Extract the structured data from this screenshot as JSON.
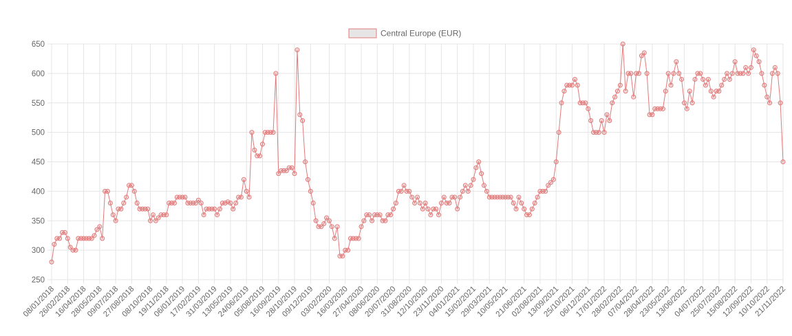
{
  "chart_data": {
    "type": "line",
    "title": "",
    "xlabel": "",
    "ylabel": "",
    "ylim": [
      250,
      650
    ],
    "yticks": [
      250,
      300,
      350,
      400,
      450,
      500,
      550,
      600,
      650
    ],
    "grid": true,
    "legend_position": "top",
    "x_tick_labels": [
      "08/01/2018",
      "26/02/2018",
      "16/04/2018",
      "28/05/2018",
      "09/07/2018",
      "27/08/2018",
      "08/10/2018",
      "19/11/2018",
      "06/01/2019",
      "17/02/2019",
      "31/03/2019",
      "13/05/2019",
      "24/06/2019",
      "05/08/2019",
      "16/09/2019",
      "28/10/2019",
      "09/12/2019",
      "03/02/2020",
      "16/03/2020",
      "27/04/2020",
      "08/06/2020",
      "20/07/2020",
      "31/08/2020",
      "12/10/2020",
      "23/11/2020",
      "04/01/2021",
      "15/02/2021",
      "29/03/2021",
      "10/05/2021",
      "21/06/2021",
      "02/08/2021",
      "13/09/2021",
      "25/10/2021",
      "06/12/2021",
      "17/01/2022",
      "28/02/2022",
      "07/04/2022",
      "28/04/2022",
      "23/05/2022",
      "13/06/2022",
      "04/07/2022",
      "25/07/2022",
      "15/08/2022",
      "12/09/2022",
      "10/10/2022",
      "21/11/2022"
    ],
    "series": [
      {
        "name": "Central Europe (EUR)",
        "color": "#e07a7a",
        "values": [
          280,
          310,
          320,
          320,
          330,
          330,
          320,
          305,
          300,
          300,
          320,
          320,
          320,
          320,
          320,
          320,
          325,
          335,
          340,
          320,
          400,
          400,
          380,
          360,
          350,
          370,
          370,
          380,
          390,
          410,
          410,
          400,
          380,
          370,
          370,
          370,
          370,
          350,
          360,
          350,
          355,
          360,
          360,
          360,
          380,
          380,
          380,
          390,
          390,
          390,
          390,
          380,
          380,
          380,
          380,
          385,
          380,
          360,
          370,
          370,
          370,
          370,
          360,
          370,
          380,
          380,
          382,
          380,
          370,
          380,
          390,
          390,
          420,
          400,
          390,
          500,
          470,
          460,
          460,
          480,
          500,
          500,
          500,
          500,
          600,
          430,
          435,
          435,
          435,
          440,
          440,
          430,
          640,
          530,
          520,
          450,
          420,
          400,
          380,
          350,
          340,
          340,
          345,
          355,
          350,
          340,
          320,
          340,
          290,
          290,
          300,
          300,
          320,
          320,
          320,
          320,
          340,
          350,
          360,
          360,
          350,
          360,
          360,
          360,
          350,
          350,
          360,
          360,
          370,
          380,
          400,
          400,
          410,
          400,
          400,
          390,
          380,
          390,
          380,
          370,
          380,
          370,
          360,
          370,
          370,
          360,
          380,
          390,
          380,
          380,
          390,
          390,
          370,
          390,
          400,
          410,
          400,
          410,
          420,
          440,
          450,
          430,
          410,
          400,
          390,
          390,
          390,
          390,
          390,
          390,
          390,
          390,
          390,
          380,
          370,
          390,
          380,
          370,
          360,
          360,
          370,
          380,
          390,
          400,
          400,
          400,
          410,
          415,
          420,
          450,
          500,
          550,
          570,
          580,
          580,
          580,
          590,
          580,
          550,
          550,
          550,
          540,
          520,
          500,
          500,
          500,
          520,
          500,
          530,
          520,
          550,
          560,
          570,
          580,
          650,
          570,
          600,
          600,
          560,
          600,
          600,
          630,
          635,
          600,
          530,
          530,
          540,
          540,
          540,
          540,
          570,
          600,
          580,
          600,
          620,
          600,
          590,
          550,
          540,
          570,
          550,
          590,
          600,
          600,
          590,
          580,
          590,
          570,
          560,
          570,
          570,
          580,
          590,
          600,
          590,
          600,
          620,
          600,
          600,
          600,
          610,
          600,
          610,
          640,
          630,
          620,
          600,
          580,
          560,
          550,
          600,
          610,
          600,
          550,
          450
        ]
      }
    ]
  }
}
